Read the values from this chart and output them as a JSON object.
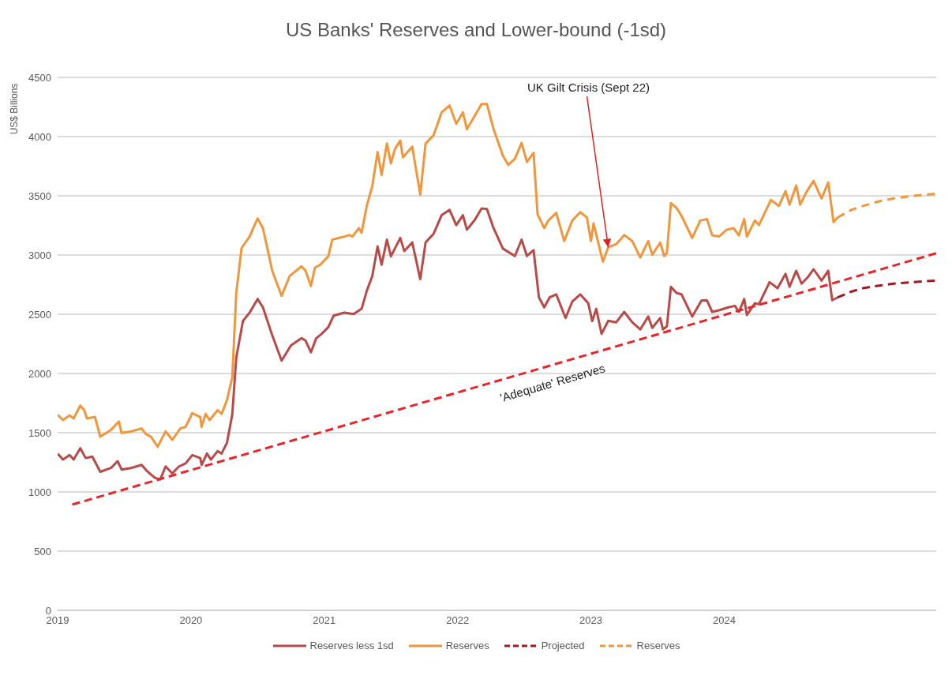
{
  "chart_data": {
    "type": "line",
    "title": "US Banks' Reserves and Lower-bound (-1sd)",
    "ylabel": "US$ Billions",
    "xlim": [
      2019,
      2025.59
    ],
    "xticks": [
      2019,
      2020,
      2021,
      2022,
      2023,
      2024
    ],
    "ylim": [
      0,
      4500
    ],
    "yticks": [
      0,
      500,
      1000,
      1500,
      2000,
      2500,
      3000,
      3500,
      4000,
      4500
    ],
    "grid": "y",
    "legend": "bottom",
    "marker": "none",
    "annotations": [
      {
        "text": "UK Gilt Crisis (Sept 22)",
        "x": 2023.13,
        "y": 3066
      },
      "'Adequate' Reserves"
    ],
    "series": [
      {
        "name": "Reserves less 1sd",
        "color": "#b84a48",
        "line_style": "solid",
        "x": [
          2019.0,
          2019.04,
          2019.09,
          2019.12,
          2019.17,
          2019.21,
          2019.26,
          2019.32,
          2019.4,
          2019.45,
          2019.48,
          2019.55,
          2019.63,
          2019.67,
          2019.73,
          2019.77,
          2019.81,
          2019.86,
          2019.91,
          2019.96,
          2020.01,
          2020.07,
          2020.08,
          2020.12,
          2020.15,
          2020.2,
          2020.23,
          2020.27,
          2020.31,
          2020.34,
          2020.39,
          2020.44,
          2020.5,
          2020.54,
          2020.61,
          2020.68,
          2020.75,
          2020.83,
          2020.86,
          2020.9,
          2020.94,
          2020.98,
          2021.03,
          2021.07,
          2021.15,
          2021.22,
          2021.28,
          2021.32,
          2021.36,
          2021.4,
          2021.43,
          2021.47,
          2021.5,
          2021.57,
          2021.6,
          2021.66,
          2021.72,
          2021.76,
          2021.82,
          2021.88,
          2021.94,
          2021.99,
          2022.04,
          2022.07,
          2022.13,
          2022.18,
          2022.22,
          2022.27,
          2022.34,
          2022.43,
          2022.48,
          2022.52,
          2022.57,
          2022.61,
          2022.65,
          2022.69,
          2022.74,
          2022.81,
          2022.86,
          2022.92,
          2022.98,
          2023.01,
          2023.04,
          2023.08,
          2023.13,
          2023.19,
          2023.25,
          2023.31,
          2023.37,
          2023.43,
          2023.46,
          2023.52,
          2023.54,
          2023.57,
          2023.6,
          2023.64,
          2023.68,
          2023.76,
          2023.83,
          2023.87,
          2023.91,
          2023.96,
          2024.03,
          2024.08,
          2024.11,
          2024.15,
          2024.17,
          2024.23,
          2024.26,
          2024.34,
          2024.4,
          2024.46,
          2024.49,
          2024.54,
          2024.58,
          2024.63,
          2024.67,
          2024.73,
          2024.78,
          2024.81,
          2024.85
        ],
        "values": [
          1324,
          1273,
          1311,
          1273,
          1369,
          1286,
          1298,
          1170,
          1202,
          1260,
          1189,
          1202,
          1228,
          1176,
          1119,
          1106,
          1215,
          1157,
          1215,
          1241,
          1311,
          1286,
          1228,
          1324,
          1273,
          1344,
          1324,
          1414,
          1654,
          2134,
          2443,
          2513,
          2629,
          2558,
          2321,
          2108,
          2237,
          2298,
          2276,
          2179,
          2298,
          2334,
          2391,
          2488,
          2513,
          2501,
          2546,
          2702,
          2822,
          3073,
          2918,
          3130,
          2989,
          3144,
          3034,
          3107,
          2796,
          3107,
          3179,
          3336,
          3381,
          3253,
          3336,
          3214,
          3298,
          3394,
          3388,
          3227,
          3054,
          2992,
          3130,
          2992,
          3041,
          2643,
          2558,
          2642,
          2668,
          2468,
          2607,
          2668,
          2593,
          2443,
          2546,
          2334,
          2445,
          2432,
          2520,
          2432,
          2372,
          2481,
          2385,
          2468,
          2372,
          2398,
          2732,
          2681,
          2668,
          2481,
          2616,
          2618,
          2520,
          2533,
          2558,
          2571,
          2520,
          2629,
          2494,
          2593,
          2584,
          2771,
          2720,
          2841,
          2732,
          2867,
          2758,
          2817,
          2880,
          2784,
          2867,
          2618,
          2642
        ]
      },
      {
        "name": "Reserves",
        "color": "#f0963c",
        "line_style": "solid",
        "x": [
          2019.0,
          2019.04,
          2019.09,
          2019.12,
          2019.17,
          2019.2,
          2019.22,
          2019.28,
          2019.32,
          2019.4,
          2019.46,
          2019.48,
          2019.55,
          2019.63,
          2019.66,
          2019.7,
          2019.75,
          2019.81,
          2019.86,
          2019.92,
          2019.96,
          2020.01,
          2020.07,
          2020.08,
          2020.11,
          2020.14,
          2020.2,
          2020.23,
          2020.27,
          2020.31,
          2020.34,
          2020.38,
          2020.44,
          2020.5,
          2020.54,
          2020.61,
          2020.68,
          2020.74,
          2020.83,
          2020.86,
          2020.9,
          2020.93,
          2020.97,
          2021.03,
          2021.06,
          2021.15,
          2021.19,
          2021.21,
          2021.26,
          2021.28,
          2021.32,
          2021.36,
          2021.4,
          2021.43,
          2021.47,
          2021.5,
          2021.53,
          2021.57,
          2021.59,
          2021.66,
          2021.72,
          2021.76,
          2021.82,
          2021.88,
          2021.94,
          2021.99,
          2022.04,
          2022.07,
          2022.13,
          2022.18,
          2022.22,
          2022.27,
          2022.34,
          2022.38,
          2022.43,
          2022.48,
          2022.52,
          2022.57,
          2022.6,
          2022.65,
          2022.68,
          2022.74,
          2022.8,
          2022.86,
          2022.92,
          2022.97,
          2023.0,
          2023.02,
          2023.09,
          2023.13,
          2023.19,
          2023.25,
          2023.31,
          2023.37,
          2023.43,
          2023.46,
          2023.52,
          2023.55,
          2023.57,
          2023.6,
          2023.64,
          2023.68,
          2023.76,
          2023.82,
          2023.87,
          2023.91,
          2023.96,
          2024.02,
          2024.07,
          2024.11,
          2024.15,
          2024.17,
          2024.23,
          2024.26,
          2024.35,
          2024.41,
          2024.46,
          2024.49,
          2024.54,
          2024.57,
          2024.62,
          2024.67,
          2024.73,
          2024.78,
          2024.82,
          2024.85
        ],
        "values": [
          1652,
          1607,
          1646,
          1620,
          1729,
          1690,
          1620,
          1633,
          1466,
          1523,
          1594,
          1498,
          1510,
          1536,
          1491,
          1466,
          1382,
          1511,
          1440,
          1536,
          1549,
          1665,
          1633,
          1549,
          1659,
          1607,
          1690,
          1659,
          1774,
          1967,
          2681,
          3060,
          3156,
          3310,
          3227,
          2867,
          2655,
          2822,
          2905,
          2867,
          2738,
          2893,
          2918,
          2989,
          3130,
          3156,
          3169,
          3156,
          3227,
          3188,
          3420,
          3581,
          3870,
          3677,
          3941,
          3773,
          3896,
          3966,
          3825,
          3915,
          3510,
          3941,
          4011,
          4204,
          4262,
          4108,
          4204,
          4063,
          4178,
          4275,
          4275,
          4063,
          3838,
          3761,
          3812,
          3947,
          3786,
          3863,
          3343,
          3227,
          3291,
          3356,
          3118,
          3291,
          3362,
          3317,
          3118,
          3266,
          2944,
          3066,
          3092,
          3169,
          3118,
          2980,
          3118,
          3002,
          3105,
          2992,
          3015,
          3439,
          3401,
          3330,
          3144,
          3291,
          3304,
          3166,
          3156,
          3214,
          3227,
          3166,
          3304,
          3156,
          3291,
          3253,
          3465,
          3414,
          3539,
          3426,
          3587,
          3426,
          3539,
          3626,
          3478,
          3613,
          3278,
          3317
        ]
      },
      {
        "name": "Projected",
        "color": "#a01820",
        "line_style": "dashed",
        "x": [
          2024.85,
          2024.95,
          2025.04,
          2025.15,
          2025.27,
          2025.42,
          2025.58
        ],
        "values": [
          2642,
          2690,
          2720,
          2740,
          2758,
          2772,
          2784
        ]
      },
      {
        "name": "Reserves",
        "color": "#f0963c",
        "line_style": "dashed",
        "x": [
          2024.85,
          2024.95,
          2025.04,
          2025.15,
          2025.27,
          2025.42,
          2025.58
        ],
        "values": [
          3317,
          3380,
          3414,
          3450,
          3478,
          3500,
          3516
        ]
      },
      {
        "color": "#e8262a",
        "line_style": "dashed",
        "x": [
          2019.11,
          2025.59
        ],
        "values": [
          893,
          3015
        ]
      }
    ]
  }
}
